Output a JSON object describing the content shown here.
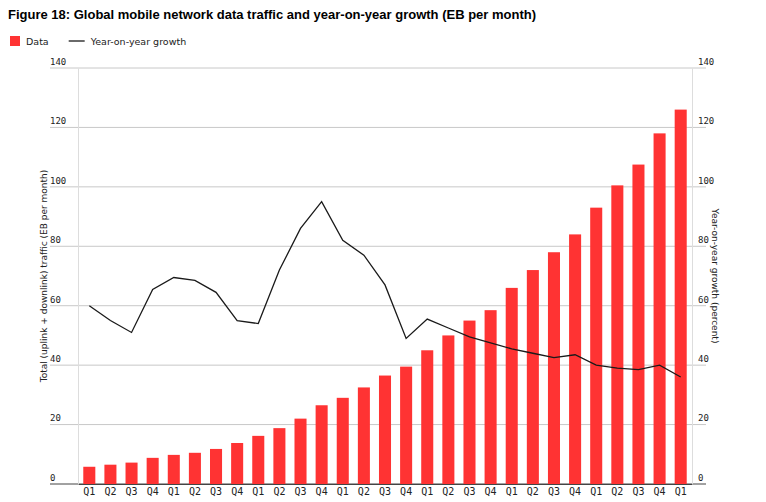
{
  "chart_data": {
    "type": "bar",
    "title": "Figure 18: Global mobile network data traffic and year-on-year growth (EB per month)",
    "y_label": "Total (uplink + downlink) traffic (EB per month)",
    "y2_label": "Year-on-year growth (percent)",
    "categories": [
      "Q1",
      "Q2",
      "Q3",
      "Q4",
      "Q1",
      "Q2",
      "Q3",
      "Q4",
      "Q1",
      "Q2",
      "Q3",
      "Q4",
      "Q1",
      "Q2",
      "Q3",
      "Q4",
      "Q1",
      "Q2",
      "Q3",
      "Q4",
      "Q1",
      "Q2",
      "Q3",
      "Q4",
      "Q1",
      "Q2",
      "Q3",
      "Q4",
      "Q1"
    ],
    "series": [
      {
        "name": "Data",
        "type": "bar",
        "color": "#ff3333",
        "values": [
          5.8,
          6.5,
          7.2,
          8.8,
          9.8,
          10.5,
          11.8,
          13.8,
          16.2,
          18.8,
          22,
          26.5,
          29,
          32.5,
          36.5,
          39.5,
          45,
          50,
          55,
          58.5,
          66,
          72,
          78,
          84,
          93,
          100.5,
          107.5,
          118,
          126
        ]
      },
      {
        "name": "Year-on-year growth",
        "type": "line",
        "color": "#1a1a1a",
        "axis": "y2",
        "values": [
          60,
          55,
          51,
          65.5,
          69.5,
          68.5,
          64.5,
          55,
          54,
          72,
          86,
          95,
          82,
          77,
          67,
          49,
          55.5,
          52.5,
          49.5,
          47.5,
          45.5,
          44,
          42.5,
          43.5,
          40,
          39,
          38.5,
          40,
          36
        ]
      }
    ],
    "ylim": [
      0,
      140
    ],
    "yticks": [
      0,
      20,
      40,
      60,
      80,
      100,
      120,
      140
    ],
    "y2lim": [
      0,
      140
    ],
    "y2ticks": [
      0,
      20,
      40,
      60,
      80,
      100,
      120,
      140
    ],
    "grid": true,
    "legend": "top-left"
  }
}
